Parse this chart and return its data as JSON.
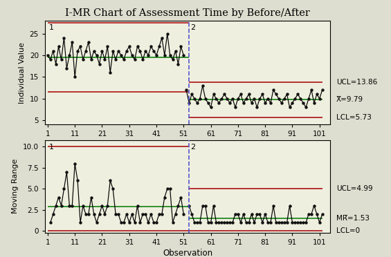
{
  "title": "I-MR Chart of Assessment Time by Before/After",
  "top_chart": {
    "ylabel": "Individual Value",
    "xlabel": "Observation",
    "ylim": [
      4,
      28
    ],
    "yticks": [
      5,
      10,
      15,
      20,
      25
    ],
    "segment1": {
      "ucl": 27.5,
      "cl": 19.5,
      "lcl": 11.5
    },
    "segment2": {
      "ucl": 13.86,
      "cl": 9.79,
      "lcl": 5.73,
      "ucl_text": "UCL=13.86",
      "cl_text": "X̅=9.79",
      "lcl_text": "LCL=5.73"
    },
    "split_x": 53,
    "data_before": [
      20,
      19,
      21,
      18,
      22,
      19,
      24,
      17,
      20,
      23,
      15,
      21,
      22,
      19,
      21,
      23,
      19,
      21,
      20,
      18,
      21,
      19,
      22,
      16,
      21,
      19,
      21,
      20,
      19,
      21,
      22,
      20,
      19,
      22,
      21,
      19,
      21,
      20,
      22,
      21,
      20,
      22,
      24,
      20,
      25,
      20,
      19,
      21,
      18,
      22,
      20
    ],
    "data_after": [
      12,
      9,
      11,
      10,
      9,
      10,
      13,
      10,
      9,
      8,
      11,
      10,
      9,
      10,
      11,
      10,
      9,
      10,
      8,
      10,
      11,
      9,
      10,
      11,
      9,
      10,
      8,
      10,
      11,
      9,
      10,
      9,
      12,
      11,
      10,
      9,
      10,
      11,
      8,
      9,
      10,
      11,
      10,
      9,
      8,
      10,
      12,
      9,
      11,
      10,
      12
    ]
  },
  "bottom_chart": {
    "ylabel": "Moving Range",
    "xlabel": "Observation",
    "ylim": [
      -0.2,
      10.8
    ],
    "yticks": [
      0.0,
      2.5,
      5.0,
      7.5,
      10.0
    ],
    "segment1": {
      "ucl": 10.0,
      "cl": 2.89,
      "lcl": 0
    },
    "segment2": {
      "ucl": 4.99,
      "cl": 1.53,
      "lcl": 0,
      "ucl_text": "UCL=4.99",
      "cl_text": "MR̅=1.53",
      "lcl_text": "LCL=0"
    },
    "split_x": 53
  },
  "colors": {
    "ucl_lcl": "#b22222",
    "cl": "#228B22",
    "line": "#000000",
    "marker": "#111111",
    "split": "#5555cc",
    "background": "#deded0",
    "plot_bg": "#efefdf"
  },
  "xticks": [
    1,
    11,
    21,
    31,
    41,
    51,
    61,
    71,
    81,
    91,
    101
  ],
  "xlim": [
    0,
    105
  ]
}
